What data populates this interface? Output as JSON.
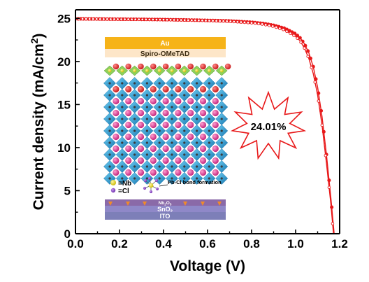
{
  "chart_data": {
    "type": "line",
    "title": "",
    "xlabel": "Voltage (V)",
    "ylabel_main": "Current density (mA/cm",
    "ylabel_sup": "2",
    "ylabel_close": ")",
    "xlim": [
      0.0,
      1.2
    ],
    "ylim": [
      0,
      26
    ],
    "xticks": [
      "0.0",
      "0.2",
      "0.4",
      "0.6",
      "0.8",
      "1.0",
      "1.2"
    ],
    "yticks": [
      "0",
      "5",
      "10",
      "15",
      "20",
      "25"
    ],
    "grid": false,
    "series": [
      {
        "color": "#e8191a",
        "points": [
          [
            0.0,
            24.95
          ],
          [
            0.1,
            24.93
          ],
          [
            0.2,
            24.91
          ],
          [
            0.3,
            24.89
          ],
          [
            0.4,
            24.86
          ],
          [
            0.5,
            24.82
          ],
          [
            0.6,
            24.77
          ],
          [
            0.7,
            24.7
          ],
          [
            0.8,
            24.55
          ],
          [
            0.85,
            24.42
          ],
          [
            0.9,
            24.2
          ],
          [
            0.95,
            23.85
          ],
          [
            1.0,
            23.2
          ],
          [
            1.02,
            22.75
          ],
          [
            1.04,
            22.05
          ],
          [
            1.06,
            21.0
          ],
          [
            1.08,
            19.4
          ],
          [
            1.1,
            17.0
          ],
          [
            1.12,
            13.6
          ],
          [
            1.14,
            9.2
          ],
          [
            1.16,
            4.2
          ],
          [
            1.175,
            0.0
          ]
        ]
      },
      {
        "color": "#e8191a",
        "points": [
          [
            0.0,
            24.95
          ],
          [
            0.1,
            24.92
          ],
          [
            0.2,
            24.9
          ],
          [
            0.3,
            24.88
          ],
          [
            0.4,
            24.85
          ],
          [
            0.5,
            24.8
          ],
          [
            0.6,
            24.75
          ],
          [
            0.7,
            24.66
          ],
          [
            0.8,
            24.48
          ],
          [
            0.85,
            24.33
          ],
          [
            0.9,
            24.07
          ],
          [
            0.95,
            23.65
          ],
          [
            1.0,
            22.9
          ],
          [
            1.02,
            22.4
          ],
          [
            1.04,
            21.55
          ],
          [
            1.06,
            20.35
          ],
          [
            1.08,
            18.6
          ],
          [
            1.1,
            16.1
          ],
          [
            1.12,
            12.6
          ],
          [
            1.14,
            8.2
          ],
          [
            1.16,
            3.5
          ],
          [
            1.172,
            0.0
          ]
        ]
      }
    ],
    "annotation": "24.01%",
    "inset": {
      "layers": {
        "top": "Au",
        "htl": "Spiro-OMeTAD",
        "interlayer": "Nb",
        "interlayer_sub": "2",
        "interlayer_o": "O",
        "interlayer_o_sub": "5",
        "etl": "SnO",
        "etl_sub": "2",
        "bottom": "ITO"
      },
      "legend_nb": "=Nb",
      "legend_cl": "=Cl",
      "bond_label": "Pb-Cl bond formation",
      "colors": {
        "au": "#f6b318",
        "spiro": "#fde6c8",
        "octahedron": "#27a4dc",
        "octahedron_dark": "#1a73a8",
        "a_site": "#d6338c",
        "iodide": "#e02a2a",
        "nb_site": "#e2d51e",
        "chloride": "#8e44c8",
        "interlayer": "#8a6aa8",
        "sno2": "#8f88c8",
        "ito": "#7d7fb8"
      }
    }
  }
}
